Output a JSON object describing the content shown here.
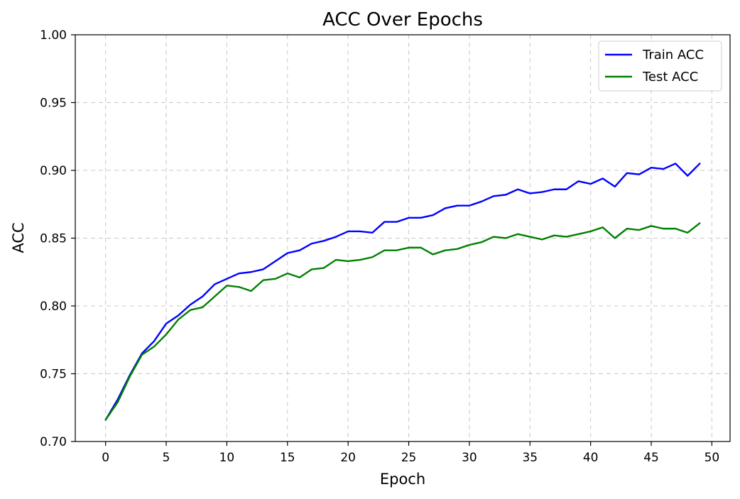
{
  "chart_data": {
    "type": "line",
    "title": "ACC Over Epochs",
    "xlabel": "Epoch",
    "ylabel": "ACC",
    "xlim": [
      -2.5,
      51.5
    ],
    "ylim": [
      0.7,
      1.0
    ],
    "xticks": [
      "0",
      "5",
      "10",
      "15",
      "20",
      "25",
      "30",
      "35",
      "40",
      "45",
      "50"
    ],
    "yticks": [
      "0.70",
      "0.75",
      "0.80",
      "0.85",
      "0.90",
      "0.95",
      "1.00"
    ],
    "grid": true,
    "legend_position": "top-right",
    "x": [
      0,
      1,
      2,
      3,
      4,
      5,
      6,
      7,
      8,
      9,
      10,
      11,
      12,
      13,
      14,
      15,
      16,
      17,
      18,
      19,
      20,
      21,
      22,
      23,
      24,
      25,
      26,
      27,
      28,
      29,
      30,
      31,
      32,
      33,
      34,
      35,
      36,
      37,
      38,
      39,
      40,
      41,
      42,
      43,
      44,
      45,
      46,
      47,
      48,
      49
    ],
    "series": [
      {
        "name": "Train ACC",
        "color": "#0000ff",
        "values": [
          0.716,
          0.731,
          0.749,
          0.765,
          0.774,
          0.787,
          0.793,
          0.801,
          0.807,
          0.816,
          0.82,
          0.824,
          0.825,
          0.827,
          0.833,
          0.839,
          0.841,
          0.846,
          0.848,
          0.851,
          0.855,
          0.855,
          0.854,
          0.862,
          0.862,
          0.865,
          0.865,
          0.867,
          0.872,
          0.874,
          0.874,
          0.877,
          0.881,
          0.882,
          0.886,
          0.883,
          0.884,
          0.886,
          0.886,
          0.892,
          0.89,
          0.894,
          0.888,
          0.898,
          0.897,
          0.902,
          0.901,
          0.905,
          0.896,
          0.905
        ]
      },
      {
        "name": "Test ACC",
        "color": "#008000",
        "values": [
          0.716,
          0.729,
          0.748,
          0.764,
          0.77,
          0.779,
          0.79,
          0.797,
          0.799,
          0.807,
          0.815,
          0.814,
          0.811,
          0.819,
          0.82,
          0.824,
          0.821,
          0.827,
          0.828,
          0.834,
          0.833,
          0.834,
          0.836,
          0.841,
          0.841,
          0.843,
          0.843,
          0.838,
          0.841,
          0.842,
          0.845,
          0.847,
          0.851,
          0.85,
          0.853,
          0.851,
          0.849,
          0.852,
          0.851,
          0.853,
          0.855,
          0.858,
          0.85,
          0.857,
          0.856,
          0.859,
          0.857,
          0.857,
          0.854,
          0.861
        ]
      }
    ]
  }
}
